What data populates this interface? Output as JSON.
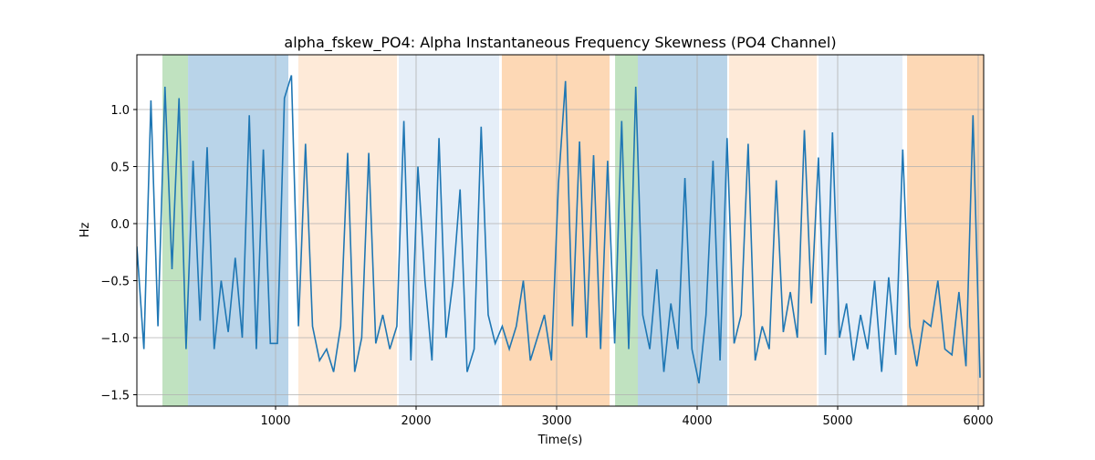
{
  "chart_data": {
    "type": "line",
    "title": "alpha_fskew_PO4: Alpha Instantaneous Frequency Skewness (PO4 Channel)",
    "x_label": "Time(s)",
    "y_label": "Hz",
    "xlim": [
      13,
      6039
    ],
    "ylim": [
      -1.6,
      1.48
    ],
    "xticks": [
      1000,
      2000,
      3000,
      4000,
      5000,
      6000
    ],
    "yticks": [
      {
        "value": -1.5,
        "label": "−1.5"
      },
      {
        "value": -1.0,
        "label": "−1.0"
      },
      {
        "value": -0.5,
        "label": "−0.5"
      },
      {
        "value": 0,
        "label": "0.0"
      },
      0.5,
      {
        "value": 1.0,
        "label": "1.0"
      }
    ],
    "grid": true,
    "regions": [
      {
        "start": 195,
        "end": 377,
        "color": "#c0e2c0"
      },
      {
        "start": 377,
        "end": 1091,
        "color": "#b9d4e9"
      },
      {
        "start": 1162,
        "end": 1864,
        "color": "#feead8"
      },
      {
        "start": 1877,
        "end": 2591,
        "color": "#e5eef8"
      },
      {
        "start": 2610,
        "end": 3377,
        "color": "#fdd8b5"
      },
      {
        "start": 3416,
        "end": 3578,
        "color": "#c0e2c0"
      },
      {
        "start": 3578,
        "end": 4214,
        "color": "#b9d4e9"
      },
      {
        "start": 4227,
        "end": 4851,
        "color": "#feead8"
      },
      {
        "start": 4864,
        "end": 5461,
        "color": "#e5eef8"
      },
      {
        "start": 5494,
        "end": 6039,
        "color": "#fdd8b5"
      }
    ],
    "x": [
      13,
      63,
      113,
      163,
      213,
      263,
      313,
      363,
      413,
      463,
      513,
      563,
      613,
      663,
      713,
      763,
      813,
      863,
      913,
      963,
      1013,
      1063,
      1113,
      1163,
      1213,
      1263,
      1313,
      1363,
      1413,
      1463,
      1513,
      1563,
      1613,
      1663,
      1713,
      1763,
      1813,
      1863,
      1913,
      1963,
      2013,
      2063,
      2113,
      2163,
      2213,
      2263,
      2313,
      2363,
      2413,
      2463,
      2513,
      2563,
      2613,
      2663,
      2713,
      2763,
      2813,
      2863,
      2913,
      2963,
      3013,
      3063,
      3113,
      3163,
      3213,
      3263,
      3313,
      3363,
      3413,
      3463,
      3513,
      3563,
      3613,
      3663,
      3713,
      3763,
      3813,
      3863,
      3913,
      3963,
      4013,
      4063,
      4113,
      4163,
      4213,
      4263,
      4313,
      4363,
      4413,
      4463,
      4513,
      4563,
      4613,
      4663,
      4713,
      4763,
      4813,
      4863,
      4913,
      4963,
      5013,
      5063,
      5113,
      5163,
      5213,
      5263,
      5313,
      5363,
      5413,
      5463,
      5513,
      5563,
      5613,
      5663,
      5713,
      5763,
      5813,
      5863,
      5913,
      5963,
      6013
    ],
    "series": [
      {
        "color": "#1f77b4",
        "values": [
          -0.2,
          -1.1,
          1.08,
          -0.9,
          1.2,
          -0.4,
          1.1,
          -1.1,
          0.55,
          -0.85,
          0.67,
          -1.1,
          -0.5,
          -0.95,
          -0.3,
          -1.0,
          0.95,
          -1.1,
          0.65,
          -1.05,
          -1.05,
          1.1,
          1.3,
          -0.9,
          0.7,
          -0.9,
          -1.2,
          -1.1,
          -1.3,
          -0.9,
          0.62,
          -1.3,
          -1.0,
          0.62,
          -1.05,
          -0.8,
          -1.1,
          -0.9,
          0.9,
          -1.2,
          0.5,
          -0.5,
          -1.2,
          0.75,
          -1.0,
          -0.5,
          0.3,
          -1.3,
          -1.1,
          0.85,
          -0.8,
          -1.05,
          -0.9,
          -1.1,
          -0.9,
          -0.5,
          -1.2,
          -1.0,
          -0.8,
          -1.2,
          0.35,
          1.25,
          -0.9,
          0.72,
          -1.0,
          0.6,
          -1.1,
          0.55,
          -1.05,
          0.9,
          -1.1,
          1.2,
          -0.8,
          -1.1,
          -0.4,
          -1.3,
          -0.7,
          -1.1,
          0.4,
          -1.1,
          -1.4,
          -0.8,
          0.55,
          -1.2,
          0.75,
          -1.05,
          -0.8,
          0.7,
          -1.2,
          -0.9,
          -1.1,
          0.38,
          -0.95,
          -0.6,
          -1.0,
          0.82,
          -0.7,
          0.58,
          -1.15,
          0.8,
          -1.0,
          -0.7,
          -1.2,
          -0.8,
          -1.1,
          -0.5,
          -1.3,
          -0.47,
          -1.15,
          0.65,
          -0.9,
          -1.25,
          -0.85,
          -0.9,
          -0.5,
          -1.1,
          -1.15,
          -0.6,
          -1.25,
          0.95,
          -1.35
        ]
      }
    ]
  }
}
